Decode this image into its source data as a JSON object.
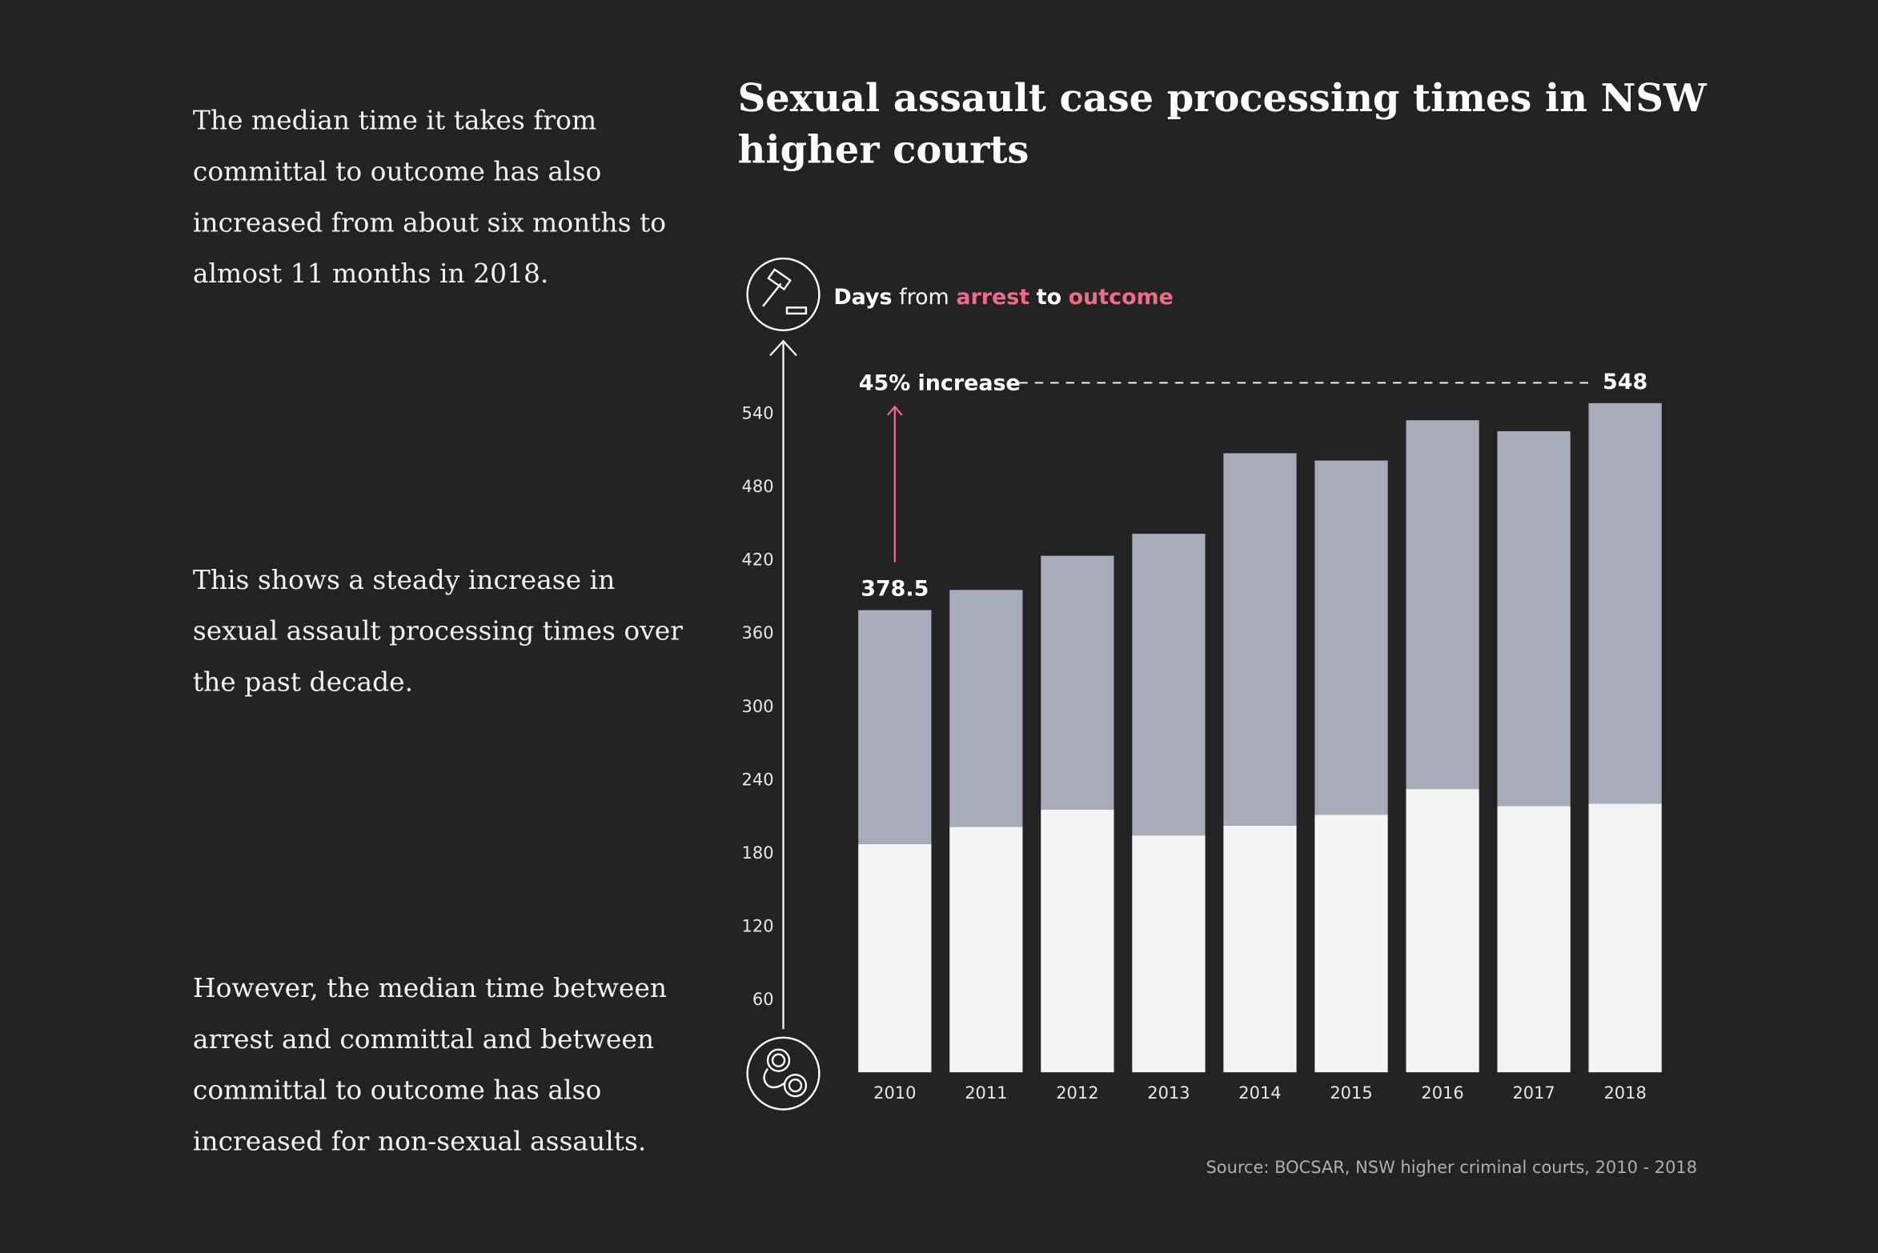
{
  "paragraphs": [
    [
      "The median time it takes from",
      "committal to outcome has also",
      "increased from about six months to",
      "almost 11 months in 2018."
    ],
    [
      "This shows a steady increase in",
      "sexual assault processing times over",
      "the past decade."
    ],
    [
      "However, the median time between",
      "arrest and committal and between",
      "committal to outcome has also",
      "increased for non-sexual assaults."
    ]
  ],
  "chart_data": {
    "type": "stacked_bar",
    "title": [
      "Sexual assault case processing times in NSW",
      "higher courts"
    ],
    "y_label": [
      "Days",
      "from",
      "arrest",
      "to",
      "outcome"
    ],
    "annotation": "45% increase",
    "source": "Source: BOCSAR, NSW higher criminal courts, 2010 - 2018",
    "categories": [
      "2010",
      "2011",
      "2012",
      "2013",
      "2014",
      "2015",
      "2016",
      "2017",
      "2018"
    ],
    "series": [
      {
        "color": "#f3f4f6",
        "values": [
          187,
          201,
          215,
          194,
          202,
          211,
          232,
          218,
          220
        ]
      },
      {
        "color": "#a7abba",
        "values": [
          191.5,
          194,
          208,
          247,
          305,
          290,
          302,
          307,
          328
        ]
      }
    ],
    "totals": [
      378.5,
      null,
      null,
      null,
      null,
      null,
      null,
      null,
      548
    ],
    "ylim": [
      0,
      600
    ],
    "yticks": [
      60,
      120,
      180,
      240,
      300,
      360,
      420,
      480,
      540
    ],
    "grid": false
  }
}
